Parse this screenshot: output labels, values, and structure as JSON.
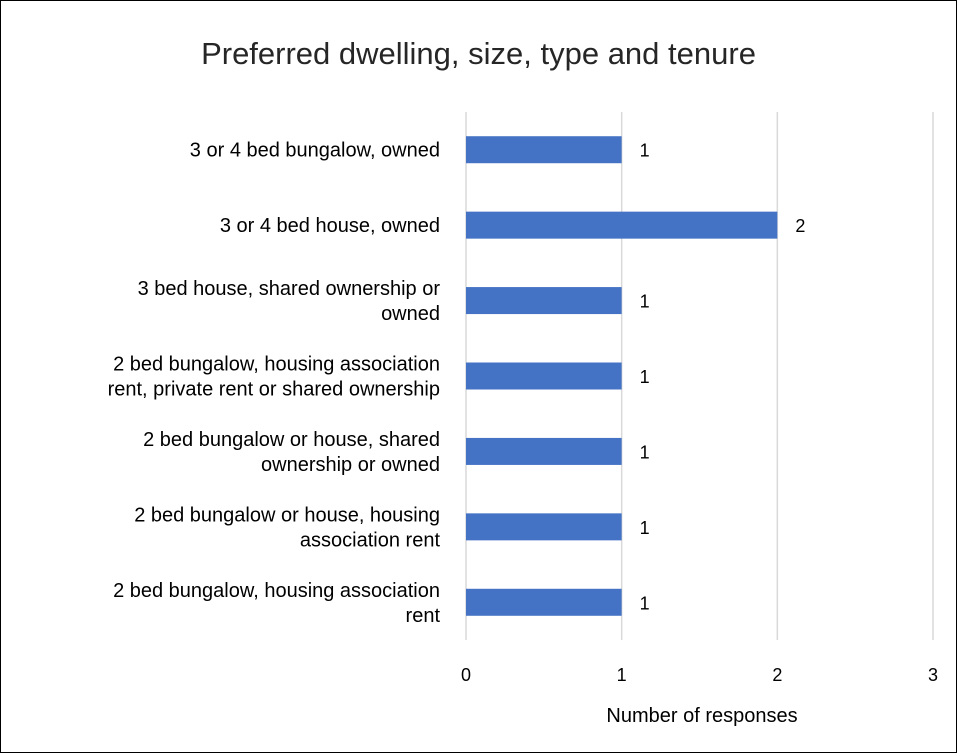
{
  "chart_data": {
    "type": "bar",
    "orientation": "horizontal",
    "title": "Preferred dwelling, size, type and tenure",
    "xlabel": "Number of responses",
    "ylabel": "",
    "categories": [
      "3 or 4 bed bungalow, owned",
      "3 or 4 bed house, owned",
      "3 bed house, shared ownership or owned",
      "2 bed bungalow, housing association rent, private rent or shared ownership",
      "2 bed bungalow or house, shared ownership or owned",
      "2 bed bungalow or house, housing association rent",
      "2 bed bungalow, housing association rent"
    ],
    "category_lines": [
      [
        "3 or 4 bed bungalow, owned"
      ],
      [
        "3 or 4 bed house, owned"
      ],
      [
        "3 bed house, shared ownership or",
        "owned"
      ],
      [
        "2 bed bungalow, housing association",
        "rent, private rent or shared ownership"
      ],
      [
        "2 bed bungalow or house, shared",
        "ownership or owned"
      ],
      [
        "2 bed bungalow or house, housing",
        "association rent"
      ],
      [
        "2 bed bungalow, housing association",
        "rent"
      ]
    ],
    "values": [
      1,
      2,
      1,
      1,
      1,
      1,
      1
    ],
    "xlim": [
      0,
      3
    ],
    "xticks": [
      "0",
      "1",
      "2",
      "3"
    ],
    "grid": "vertical",
    "legend": "none",
    "data_labels": true,
    "bar_color": "#4472c4",
    "grid_color": "#d9d9d9"
  }
}
